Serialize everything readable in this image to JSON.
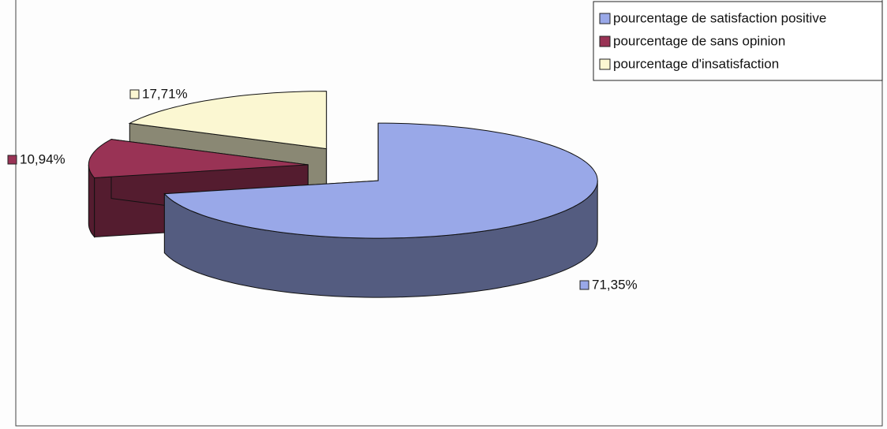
{
  "chart_data": {
    "type": "pie3d",
    "categories": [
      "pourcentage de satisfaction positive",
      "pourcentage de sans opinion",
      "pourcentage d'insatisfaction"
    ],
    "values": [
      71.35,
      10.94,
      17.71
    ],
    "value_labels": [
      "71,35%",
      "10,94%",
      "17,71%"
    ],
    "colors": [
      "#99a8e8",
      "#993355",
      "#fbf7d2"
    ],
    "legend": "top-right"
  }
}
